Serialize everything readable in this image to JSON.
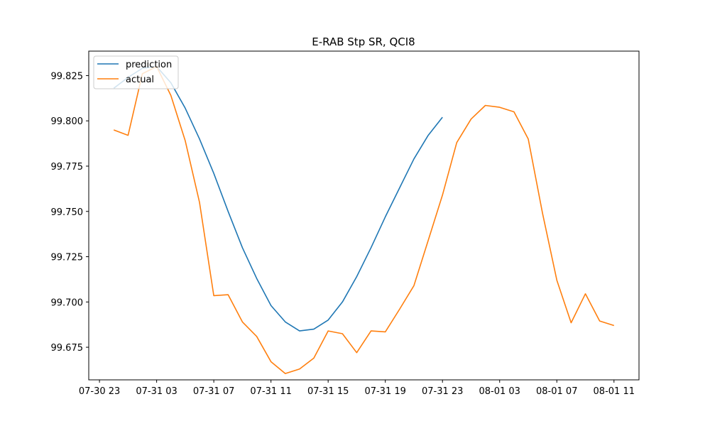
{
  "chart_data": {
    "type": "line",
    "title": "E-RAB Stp SR, QCI8",
    "xlabel": "",
    "ylabel": "",
    "x_unit": "hour",
    "x_ticks": [
      {
        "hour": 0,
        "label": "07-30 23"
      },
      {
        "hour": 4,
        "label": "07-31 03"
      },
      {
        "hour": 8,
        "label": "07-31 07"
      },
      {
        "hour": 12,
        "label": "07-31 11"
      },
      {
        "hour": 16,
        "label": "07-31 15"
      },
      {
        "hour": 20,
        "label": "07-31 19"
      },
      {
        "hour": 24,
        "label": "07-31 23"
      },
      {
        "hour": 28,
        "label": "08-01 03"
      },
      {
        "hour": 32,
        "label": "08-01 07"
      },
      {
        "hour": 36,
        "label": "08-01 11"
      }
    ],
    "y_ticks": [
      99.675,
      99.7,
      99.725,
      99.75,
      99.775,
      99.8,
      99.825
    ],
    "xlim": [
      -0.75,
      37.75
    ],
    "ylim": [
      99.657,
      99.8385
    ],
    "grid": false,
    "legend_position": "top-left",
    "series": [
      {
        "name": "prediction",
        "color": "#1f77b4",
        "x": [
          1,
          2,
          3,
          4,
          5,
          6,
          7,
          8,
          9,
          10,
          11,
          12,
          13,
          14,
          15,
          16,
          17,
          18,
          19,
          20,
          21,
          22,
          23,
          24
        ],
        "y": [
          99.818,
          99.824,
          99.829,
          99.83,
          99.821,
          99.807,
          99.79,
          99.771,
          99.75,
          99.73,
          99.713,
          99.698,
          99.689,
          99.684,
          99.685,
          99.69,
          99.7,
          99.714,
          99.73,
          99.747,
          99.763,
          99.779,
          99.792,
          99.802
        ]
      },
      {
        "name": "actual",
        "color": "#ff7f0e",
        "x": [
          1,
          2,
          3,
          4,
          5,
          6,
          7,
          8,
          9,
          10,
          11,
          12,
          13,
          14,
          15,
          16,
          17,
          18,
          19,
          20,
          21,
          22,
          23,
          24,
          25,
          26,
          27,
          28,
          29,
          30,
          31,
          32,
          33,
          34,
          35,
          36
        ],
        "y": [
          99.795,
          99.792,
          99.826,
          99.83,
          99.814,
          99.789,
          99.755,
          99.7035,
          99.704,
          99.689,
          99.681,
          99.667,
          99.6605,
          99.663,
          99.669,
          99.684,
          99.6825,
          99.672,
          99.684,
          99.6835,
          99.696,
          99.709,
          99.734,
          99.759,
          99.788,
          99.801,
          99.8085,
          99.8075,
          99.805,
          99.79,
          99.749,
          99.712,
          99.6885,
          99.7045,
          99.6895,
          99.687
        ]
      }
    ]
  }
}
